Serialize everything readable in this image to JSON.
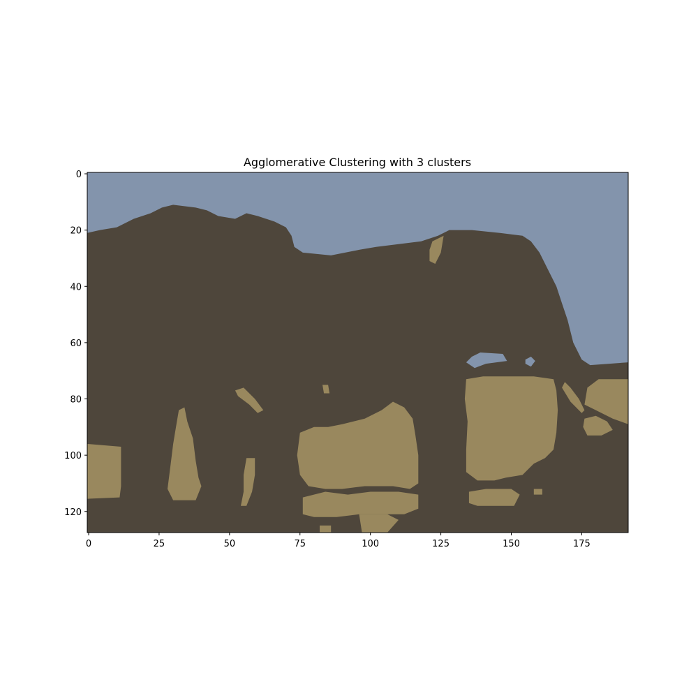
{
  "chart_data": {
    "type": "heatmap",
    "title": "Agglomerative Clustering with 3 clusters",
    "xlabel": "",
    "ylabel": "",
    "xlim": [
      -0.5,
      191.5
    ],
    "ylim": [
      127.5,
      -0.5
    ],
    "x_ticks": [
      0,
      25,
      50,
      75,
      100,
      125,
      150,
      175
    ],
    "y_ticks": [
      0,
      20,
      40,
      60,
      80,
      100,
      120
    ],
    "grid": false,
    "legend": "none",
    "clusters": [
      {
        "id": 0,
        "color": "#4e463b"
      },
      {
        "id": 1,
        "color": "#8394ac"
      },
      {
        "id": 2,
        "color": "#99885e"
      }
    ],
    "background_cluster": 0,
    "regions": [
      {
        "cluster": 1,
        "points": [
          [
            -0.5,
            -0.5
          ],
          [
            191.5,
            -0.5
          ],
          [
            191.5,
            67
          ],
          [
            178,
            68
          ],
          [
            175,
            66
          ],
          [
            172,
            60
          ],
          [
            170,
            52
          ],
          [
            168,
            46
          ],
          [
            166,
            40
          ],
          [
            163,
            34
          ],
          [
            160,
            28
          ],
          [
            157,
            24
          ],
          [
            154,
            22
          ],
          [
            146,
            21
          ],
          [
            136,
            20
          ],
          [
            128,
            20
          ],
          [
            124,
            22
          ],
          [
            118,
            24
          ],
          [
            110,
            25
          ],
          [
            102,
            26
          ],
          [
            96,
            27
          ],
          [
            86,
            29
          ],
          [
            76,
            28
          ],
          [
            73,
            26
          ],
          [
            72,
            22
          ],
          [
            70,
            19
          ],
          [
            66,
            17
          ],
          [
            60,
            15
          ],
          [
            56,
            14
          ],
          [
            52,
            16
          ],
          [
            46,
            15
          ],
          [
            42,
            13
          ],
          [
            38,
            12
          ],
          [
            30,
            11
          ],
          [
            26,
            12
          ],
          [
            22,
            14
          ],
          [
            16,
            16
          ],
          [
            10,
            19
          ],
          [
            4,
            20
          ],
          [
            -0.5,
            21
          ]
        ]
      },
      {
        "cluster": 1,
        "points": [
          [
            134,
            67
          ],
          [
            136,
            65
          ],
          [
            139,
            63.5
          ],
          [
            147,
            64
          ],
          [
            148.5,
            66.5
          ],
          [
            141,
            67.5
          ],
          [
            137,
            69
          ]
        ]
      },
      {
        "cluster": 1,
        "points": [
          [
            155,
            66
          ],
          [
            157,
            65
          ],
          [
            158.5,
            66.5
          ],
          [
            157,
            68.5
          ],
          [
            155,
            67.5
          ]
        ]
      },
      {
        "cluster": 2,
        "points": [
          [
            -0.5,
            96
          ],
          [
            11.5,
            97
          ],
          [
            11.5,
            111
          ],
          [
            11,
            115
          ],
          [
            -0.5,
            115.5
          ]
        ]
      },
      {
        "cluster": 2,
        "points": [
          [
            32,
            84
          ],
          [
            34,
            83
          ],
          [
            35,
            88
          ],
          [
            37,
            94
          ],
          [
            38,
            102
          ],
          [
            39,
            108
          ],
          [
            40,
            111
          ],
          [
            38,
            116
          ],
          [
            30,
            116
          ],
          [
            28,
            112
          ],
          [
            29,
            104
          ],
          [
            30,
            96
          ],
          [
            31,
            90
          ]
        ]
      },
      {
        "cluster": 2,
        "points": [
          [
            52,
            77
          ],
          [
            55,
            76
          ],
          [
            59,
            80
          ],
          [
            62,
            84
          ],
          [
            60,
            85
          ],
          [
            57,
            82
          ],
          [
            53,
            79
          ]
        ]
      },
      {
        "cluster": 2,
        "points": [
          [
            56,
            101
          ],
          [
            59,
            101
          ],
          [
            59,
            107
          ],
          [
            58,
            113
          ],
          [
            56,
            118
          ],
          [
            54,
            118
          ],
          [
            55,
            113
          ],
          [
            55,
            107
          ]
        ]
      },
      {
        "cluster": 2,
        "points": [
          [
            75,
            92
          ],
          [
            80,
            90
          ],
          [
            85,
            90
          ],
          [
            90,
            89
          ],
          [
            98,
            87
          ],
          [
            104,
            84
          ],
          [
            108,
            81
          ],
          [
            112,
            83
          ],
          [
            115,
            87
          ],
          [
            116,
            93
          ],
          [
            117,
            100
          ],
          [
            117,
            110
          ],
          [
            114,
            112
          ],
          [
            108,
            111
          ],
          [
            98,
            111
          ],
          [
            90,
            112
          ],
          [
            84,
            112
          ],
          [
            78,
            111
          ],
          [
            75,
            107
          ],
          [
            74,
            100
          ]
        ]
      },
      {
        "cluster": 2,
        "points": [
          [
            76,
            115
          ],
          [
            84,
            113
          ],
          [
            92,
            114
          ],
          [
            100,
            113
          ],
          [
            110,
            113
          ],
          [
            117,
            114
          ],
          [
            117,
            119
          ],
          [
            112,
            121
          ],
          [
            104,
            121
          ],
          [
            96,
            121
          ],
          [
            88,
            122
          ],
          [
            80,
            122
          ],
          [
            76,
            121
          ]
        ]
      },
      {
        "cluster": 2,
        "points": [
          [
            96,
            121
          ],
          [
            106,
            121
          ],
          [
            110,
            123
          ],
          [
            106,
            127.5
          ],
          [
            97,
            127.5
          ]
        ]
      },
      {
        "cluster": 2,
        "points": [
          [
            82,
            125
          ],
          [
            86,
            125
          ],
          [
            86,
            127.5
          ],
          [
            82,
            127.5
          ]
        ]
      },
      {
        "cluster": 2,
        "points": [
          [
            83,
            75
          ],
          [
            85,
            75
          ],
          [
            85.5,
            78
          ],
          [
            83.5,
            78
          ]
        ]
      },
      {
        "cluster": 2,
        "points": [
          [
            122,
            24
          ],
          [
            126,
            22
          ],
          [
            125,
            28
          ],
          [
            123,
            32
          ],
          [
            121,
            31
          ],
          [
            121,
            27
          ]
        ]
      },
      {
        "cluster": 2,
        "points": [
          [
            134,
            73
          ],
          [
            140,
            72
          ],
          [
            148,
            72
          ],
          [
            158,
            72
          ],
          [
            165,
            73
          ],
          [
            166,
            77
          ],
          [
            166.5,
            84
          ],
          [
            166,
            92
          ],
          [
            165,
            98
          ],
          [
            162,
            101
          ],
          [
            158,
            103
          ],
          [
            154,
            107
          ],
          [
            148,
            108
          ],
          [
            144,
            109
          ],
          [
            138,
            109
          ],
          [
            134,
            106
          ],
          [
            134,
            98
          ],
          [
            134.5,
            88
          ],
          [
            133.5,
            80
          ]
        ]
      },
      {
        "cluster": 2,
        "points": [
          [
            135,
            113
          ],
          [
            141,
            112
          ],
          [
            150,
            112
          ],
          [
            153,
            114
          ],
          [
            151,
            118
          ],
          [
            144,
            118
          ],
          [
            138,
            118
          ],
          [
            135,
            117
          ]
        ]
      },
      {
        "cluster": 2,
        "points": [
          [
            158,
            112
          ],
          [
            161,
            112
          ],
          [
            161,
            114
          ],
          [
            158,
            114
          ]
        ]
      },
      {
        "cluster": 2,
        "points": [
          [
            169,
            74
          ],
          [
            171,
            76
          ],
          [
            174,
            80
          ],
          [
            176,
            84
          ],
          [
            175,
            85
          ],
          [
            171,
            81
          ],
          [
            168,
            76
          ]
        ]
      },
      {
        "cluster": 2,
        "points": [
          [
            177,
            76
          ],
          [
            181,
            73
          ],
          [
            191.5,
            73
          ],
          [
            191.5,
            89
          ],
          [
            186,
            87
          ],
          [
            180,
            84
          ],
          [
            176,
            82
          ]
        ]
      },
      {
        "cluster": 2,
        "points": [
          [
            176,
            87
          ],
          [
            180,
            86
          ],
          [
            184,
            88
          ],
          [
            186,
            91
          ],
          [
            182,
            93
          ],
          [
            177,
            93
          ],
          [
            175.5,
            90
          ]
        ]
      }
    ]
  }
}
